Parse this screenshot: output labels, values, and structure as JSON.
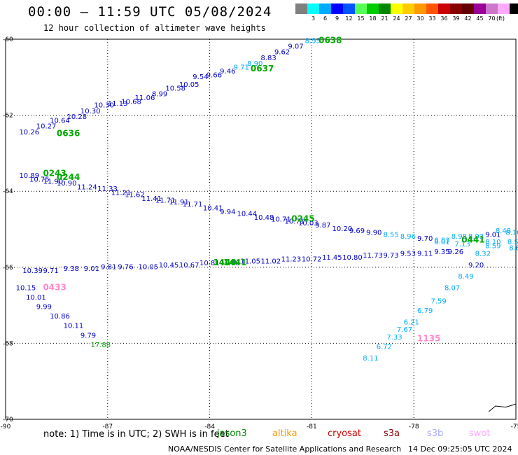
{
  "title": "00:00 – 11:59 UTC 05/08/2024",
  "subtitle": "12 hour collection of altimeter wave heights",
  "colorbar": {
    "labels": [
      "",
      "3",
      "6",
      "9",
      "12",
      "15",
      "18",
      "21",
      "24",
      "27",
      "30",
      "33",
      "36",
      "39",
      "42",
      "45",
      "70"
    ],
    "colors": [
      "#808080",
      "#00ffff",
      "#00aaff",
      "#0000ff",
      "#0055ff",
      "#55ff55",
      "#00cc00",
      "#008800",
      "#ffff00",
      "#ffcc00",
      "#ff9900",
      "#ff5500",
      "#cc0000",
      "#880000",
      "#660000",
      "#990099",
      "#cc77cc",
      "#ffaaff",
      "#000000"
    ],
    "unit": "(ft)"
  },
  "map": {
    "x_ticks": [
      {
        "lon": -90,
        "label": "-90"
      },
      {
        "lon": -87,
        "label": "-87"
      },
      {
        "lon": -84,
        "label": "-84"
      },
      {
        "lon": -81,
        "label": "-81"
      },
      {
        "lon": -78,
        "label": "-78"
      },
      {
        "lon": -75,
        "label": "-75"
      }
    ],
    "y_ticks": [
      {
        "lat": -60,
        "label": "-60"
      },
      {
        "lat": -62,
        "label": "-62"
      },
      {
        "lat": -64,
        "label": "-64"
      },
      {
        "lat": -66,
        "label": "-66"
      },
      {
        "lat": -68,
        "label": "-68"
      },
      {
        "lat": -70,
        "label": "-70"
      }
    ],
    "xlim": [
      -90,
      -75
    ],
    "ylim": [
      -70,
      -60
    ]
  },
  "chart_data": {
    "type": "scatter",
    "x_label": "",
    "y_label": "",
    "points": [
      {
        "lon": -89.6,
        "lat": -62.5,
        "text": "10.26",
        "color": "#0000cc"
      },
      {
        "lon": -89.1,
        "lat": -62.35,
        "text": "10.27",
        "color": "#0000cc"
      },
      {
        "lon": -88.7,
        "lat": -62.2,
        "text": "10.64",
        "color": "#0000cc"
      },
      {
        "lon": -88.2,
        "lat": -62.1,
        "text": "10.28",
        "color": "#0000cc"
      },
      {
        "lon": -87.8,
        "lat": -61.95,
        "text": "10.30",
        "color": "#0000cc"
      },
      {
        "lon": -87.4,
        "lat": -61.8,
        "text": "10.30",
        "color": "#0000cc"
      },
      {
        "lon": -87.0,
        "lat": -61.75,
        "text": "11.13",
        "color": "#0000cc"
      },
      {
        "lon": -86.6,
        "lat": -61.7,
        "text": "10.68",
        "color": "#0000cc"
      },
      {
        "lon": -86.2,
        "lat": -61.6,
        "text": "11.06",
        "color": "#0000cc"
      },
      {
        "lon": -85.7,
        "lat": -61.5,
        "text": "8.99",
        "color": "#0000cc"
      },
      {
        "lon": -85.3,
        "lat": -61.35,
        "text": "10.58",
        "color": "#0000cc"
      },
      {
        "lon": -84.9,
        "lat": -61.25,
        "text": "10.05",
        "color": "#0000cc"
      },
      {
        "lon": -84.5,
        "lat": -61.05,
        "text": "9.54",
        "color": "#0000cc"
      },
      {
        "lon": -84.1,
        "lat": -61.0,
        "text": "9.66",
        "color": "#0000cc"
      },
      {
        "lon": -83.7,
        "lat": -60.9,
        "text": "9.46",
        "color": "#0000cc"
      },
      {
        "lon": -83.3,
        "lat": -60.8,
        "text": "9.71",
        "color": "#00aaff"
      },
      {
        "lon": -82.9,
        "lat": -60.7,
        "text": "8.90",
        "color": "#00aaff"
      },
      {
        "lon": -82.5,
        "lat": -60.55,
        "text": "8.83",
        "color": "#0000cc"
      },
      {
        "lon": -82.1,
        "lat": -60.4,
        "text": "9.62",
        "color": "#0000cc"
      },
      {
        "lon": -81.7,
        "lat": -60.25,
        "text": "9.07",
        "color": "#0000cc"
      },
      {
        "lon": -81.2,
        "lat": -60.1,
        "text": "8.95",
        "color": "#00aaff"
      },
      {
        "lon": -89.6,
        "lat": -63.65,
        "text": "10.89",
        "color": "#0000cc"
      },
      {
        "lon": -89.3,
        "lat": -63.75,
        "text": "10.75",
        "color": "#0000cc"
      },
      {
        "lon": -88.9,
        "lat": -63.8,
        "text": "11.90",
        "color": "#0000cc"
      },
      {
        "lon": -88.5,
        "lat": -63.85,
        "text": "10.90",
        "color": "#0000cc"
      },
      {
        "lon": -87.9,
        "lat": -63.95,
        "text": "11.24",
        "color": "#0000cc"
      },
      {
        "lon": -87.3,
        "lat": -64.0,
        "text": "11.33",
        "color": "#0000cc"
      },
      {
        "lon": -86.9,
        "lat": -64.1,
        "text": "11.21",
        "color": "#0000cc"
      },
      {
        "lon": -86.5,
        "lat": -64.15,
        "text": "11.62",
        "color": "#0000cc"
      },
      {
        "lon": -86.0,
        "lat": -64.25,
        "text": "11.41",
        "color": "#0000cc"
      },
      {
        "lon": -85.6,
        "lat": -64.3,
        "text": "11.71",
        "color": "#0000cc"
      },
      {
        "lon": -85.2,
        "lat": -64.35,
        "text": "11.91",
        "color": "#0000cc"
      },
      {
        "lon": -84.8,
        "lat": -64.4,
        "text": "11.71",
        "color": "#0000cc"
      },
      {
        "lon": -84.2,
        "lat": -64.5,
        "text": "10.41",
        "color": "#0000cc"
      },
      {
        "lon": -83.7,
        "lat": -64.6,
        "text": "9.94",
        "color": "#0000cc"
      },
      {
        "lon": -83.2,
        "lat": -64.65,
        "text": "10.44",
        "color": "#0000cc"
      },
      {
        "lon": -82.7,
        "lat": -64.75,
        "text": "10.48",
        "color": "#0000cc"
      },
      {
        "lon": -82.2,
        "lat": -64.8,
        "text": "10.71",
        "color": "#0000cc"
      },
      {
        "lon": -81.8,
        "lat": -64.85,
        "text": "10.71",
        "color": "#0000cc"
      },
      {
        "lon": -81.4,
        "lat": -64.9,
        "text": "10.03",
        "color": "#0000cc"
      },
      {
        "lon": -80.9,
        "lat": -64.95,
        "text": "9.87",
        "color": "#0000cc"
      },
      {
        "lon": -80.4,
        "lat": -65.05,
        "text": "10.20",
        "color": "#0000cc"
      },
      {
        "lon": -79.9,
        "lat": -65.1,
        "text": "9.69",
        "color": "#0000cc"
      },
      {
        "lon": -79.4,
        "lat": -65.15,
        "text": "9.90",
        "color": "#0000cc"
      },
      {
        "lon": -78.9,
        "lat": -65.2,
        "text": "8.55",
        "color": "#00aaff"
      },
      {
        "lon": -78.4,
        "lat": -65.25,
        "text": "8.96",
        "color": "#00aaff"
      },
      {
        "lon": -77.9,
        "lat": -65.3,
        "text": "9.70",
        "color": "#0000cc"
      },
      {
        "lon": -77.4,
        "lat": -65.35,
        "text": "8.83",
        "color": "#00aaff"
      },
      {
        "lon": -76.9,
        "lat": -65.25,
        "text": "8.98",
        "color": "#00aaff"
      },
      {
        "lon": -76.4,
        "lat": -65.25,
        "text": "8.93",
        "color": "#00aaff"
      },
      {
        "lon": -75.9,
        "lat": -65.2,
        "text": "9.01",
        "color": "#0000cc"
      },
      {
        "lon": -75.3,
        "lat": -65.15,
        "text": "8.10",
        "color": "#00aaff"
      },
      {
        "lon": -77.4,
        "lat": -65.4,
        "text": "8.01",
        "color": "#00aaff"
      },
      {
        "lon": -76.8,
        "lat": -65.45,
        "text": "7.13",
        "color": "#00aaff"
      },
      {
        "lon": -75.9,
        "lat": -65.5,
        "text": "8.59",
        "color": "#00aaff"
      },
      {
        "lon": -75.25,
        "lat": -65.4,
        "text": "8.5",
        "color": "#00aaff"
      },
      {
        "lon": -75.2,
        "lat": -65.55,
        "text": "8.69",
        "color": "#00aaff"
      },
      {
        "lon": -89.5,
        "lat": -66.15,
        "text": "10.39",
        "color": "#0000cc"
      },
      {
        "lon": -88.9,
        "lat": -66.15,
        "text": "9.71",
        "color": "#0000cc"
      },
      {
        "lon": -88.3,
        "lat": -66.1,
        "text": "9.38",
        "color": "#0000cc"
      },
      {
        "lon": -87.7,
        "lat": -66.1,
        "text": "9.01",
        "color": "#0000cc"
      },
      {
        "lon": -87.2,
        "lat": -66.05,
        "text": "9.81",
        "color": "#0000cc"
      },
      {
        "lon": -86.7,
        "lat": -66.05,
        "text": "9.76",
        "color": "#0000cc"
      },
      {
        "lon": -86.1,
        "lat": -66.05,
        "text": "10.05",
        "color": "#0000cc"
      },
      {
        "lon": -85.5,
        "lat": -66.0,
        "text": "10.45",
        "color": "#0000cc"
      },
      {
        "lon": -84.9,
        "lat": -66.0,
        "text": "10.67",
        "color": "#0000cc"
      },
      {
        "lon": -84.3,
        "lat": -65.95,
        "text": "10.81",
        "color": "#0000cc"
      },
      {
        "lon": -83.7,
        "lat": -65.95,
        "text": "11.38",
        "color": "#0000cc"
      },
      {
        "lon": -83.1,
        "lat": -65.9,
        "text": "11.05",
        "color": "#0000cc"
      },
      {
        "lon": -82.5,
        "lat": -65.9,
        "text": "11.02",
        "color": "#0000cc"
      },
      {
        "lon": -81.9,
        "lat": -65.85,
        "text": "11.23",
        "color": "#0000cc"
      },
      {
        "lon": -81.3,
        "lat": -65.85,
        "text": "10.72",
        "color": "#0000cc"
      },
      {
        "lon": -80.7,
        "lat": -65.8,
        "text": "11.45",
        "color": "#0000cc"
      },
      {
        "lon": -80.1,
        "lat": -65.8,
        "text": "10.80",
        "color": "#0000cc"
      },
      {
        "lon": -79.5,
        "lat": -65.75,
        "text": "11.73",
        "color": "#0000cc"
      },
      {
        "lon": -78.9,
        "lat": -65.75,
        "text": "9.73",
        "color": "#0000cc"
      },
      {
        "lon": -78.4,
        "lat": -65.7,
        "text": "9.53",
        "color": "#0000cc"
      },
      {
        "lon": -77.9,
        "lat": -65.7,
        "text": "9.11",
        "color": "#0000cc"
      },
      {
        "lon": -77.4,
        "lat": -65.65,
        "text": "9.35",
        "color": "#0000cc"
      },
      {
        "lon": -77.0,
        "lat": -65.65,
        "text": "9.26",
        "color": "#0000cc"
      },
      {
        "lon": -89.7,
        "lat": -66.6,
        "text": "10.15",
        "color": "#0000cc"
      },
      {
        "lon": -89.4,
        "lat": -66.85,
        "text": "10.01",
        "color": "#0000cc"
      },
      {
        "lon": -89.1,
        "lat": -67.1,
        "text": "9.99",
        "color": "#0000cc"
      },
      {
        "lon": -88.7,
        "lat": -67.35,
        "text": "10.86",
        "color": "#0000cc"
      },
      {
        "lon": -88.3,
        "lat": -67.6,
        "text": "10.11",
        "color": "#0000cc"
      },
      {
        "lon": -87.8,
        "lat": -67.85,
        "text": "9.79",
        "color": "#0000cc"
      },
      {
        "lon": -87.5,
        "lat": -68.1,
        "text": "17.88",
        "color": "#00aa00"
      },
      {
        "lon": -79.5,
        "lat": -68.45,
        "text": "8.11",
        "color": "#00aaff"
      },
      {
        "lon": -79.1,
        "lat": -68.15,
        "text": "6.72",
        "color": "#00aaff"
      },
      {
        "lon": -78.8,
        "lat": -67.9,
        "text": "7.33",
        "color": "#00aaff"
      },
      {
        "lon": -78.5,
        "lat": -67.7,
        "text": "7.67",
        "color": "#00aaff"
      },
      {
        "lon": -78.3,
        "lat": -67.5,
        "text": "6.21",
        "color": "#00aaff"
      },
      {
        "lon": -77.9,
        "lat": -67.2,
        "text": "6.79",
        "color": "#00aaff"
      },
      {
        "lon": -77.5,
        "lat": -66.95,
        "text": "7.59",
        "color": "#00aaff"
      },
      {
        "lon": -77.1,
        "lat": -66.6,
        "text": "8.07",
        "color": "#00aaff"
      },
      {
        "lon": -76.7,
        "lat": -66.3,
        "text": "8.49",
        "color": "#00aaff"
      },
      {
        "lon": -76.4,
        "lat": -66.0,
        "text": "9.20",
        "color": "#0000cc"
      },
      {
        "lon": -76.2,
        "lat": -65.7,
        "text": "8.32",
        "color": "#00aaff"
      },
      {
        "lon": -75.9,
        "lat": -65.4,
        "text": "8.10",
        "color": "#00aaff"
      },
      {
        "lon": -75.6,
        "lat": -65.1,
        "text": "8.48",
        "color": "#00aaff"
      }
    ],
    "time_labels": [
      {
        "lon": -88.5,
        "lat": -62.55,
        "text": "0636",
        "color": "#00aa00"
      },
      {
        "lon": -82.8,
        "lat": -60.85,
        "text": "0637",
        "color": "#00aa00"
      },
      {
        "lon": -80.8,
        "lat": -60.1,
        "text": "0638",
        "color": "#00aa00"
      },
      {
        "lon": -88.9,
        "lat": -63.6,
        "text": "0243",
        "color": "#00aa00"
      },
      {
        "lon": -88.5,
        "lat": -63.7,
        "text": "0244",
        "color": "#00aa00"
      },
      {
        "lon": -81.6,
        "lat": -64.8,
        "text": "0245",
        "color": "#00aa00"
      },
      {
        "lon": -83.9,
        "lat": -65.95,
        "text": "1440",
        "color": "#00aa00"
      },
      {
        "lon": -83.6,
        "lat": -65.95,
        "text": "1441",
        "color": "#00aa00"
      },
      {
        "lon": -76.6,
        "lat": -65.35,
        "text": "0441",
        "color": "#00aa00"
      },
      {
        "lon": -88.9,
        "lat": -66.6,
        "text": "0433",
        "color": "#ff88cc"
      },
      {
        "lon": -77.9,
        "lat": -67.95,
        "text": "1135",
        "color": "#ff88cc"
      }
    ]
  },
  "land": [
    {
      "lon": -75.8,
      "lat": -69.8
    },
    {
      "lon": -75.6,
      "lat": -69.65
    },
    {
      "lon": -75.3,
      "lat": -69.68
    },
    {
      "lon": -75.0,
      "lat": -69.6
    }
  ],
  "note": "note: 1) Time is in UTC; 2) SWH is in feet",
  "legend": [
    {
      "label": "jason3",
      "color": "#008800",
      "x": 310
    },
    {
      "label": "altika",
      "color": "#ff9900",
      "x": 389
    },
    {
      "label": "cryosat",
      "color": "#cc0000",
      "x": 468
    },
    {
      "label": "s3a",
      "color": "#880000",
      "x": 548
    },
    {
      "label": "s3b",
      "color": "#aaaaff",
      "x": 610
    },
    {
      "label": "swot",
      "color": "#ffaaff",
      "x": 670
    }
  ],
  "footer": "NOAA/NESDIS Center for Satellite Applications and Research",
  "footer_date": "14 Dec 09:25:05 UTC 2024"
}
